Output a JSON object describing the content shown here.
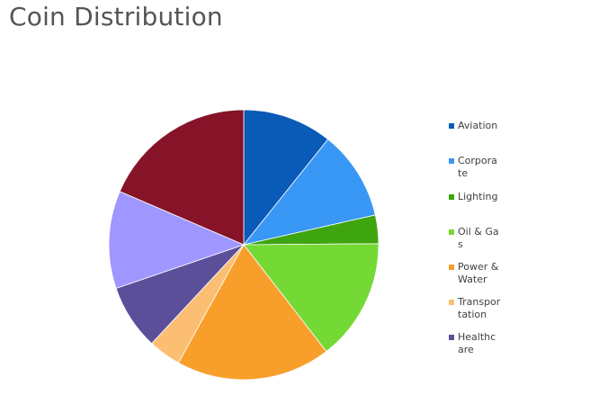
{
  "title": "Coin Distribution",
  "chart_data": {
    "type": "pie",
    "title": "Coin Distribution",
    "categories": [
      "Aviation",
      "Corporate",
      "Lighting",
      "Oil & Gas",
      "Power & Water",
      "Transportation",
      "Healthcare",
      "",
      ""
    ],
    "values": [
      11,
      11,
      3.5,
      15,
      19,
      4,
      8,
      12,
      19
    ],
    "colors": [
      "#0a5ab8",
      "#3997f5",
      "#3ea50f",
      "#75d935",
      "#f89f2b",
      "#fcbe72",
      "#5b4f9a",
      "#9f97ff",
      "#861327"
    ],
    "legend_position": "right"
  },
  "legend": [
    {
      "label": "Aviation",
      "color": "#0a5ab8"
    },
    {
      "label": "Corporate",
      "color": "#3997f5"
    },
    {
      "label": "Lighting",
      "color": "#3ea50f"
    },
    {
      "label": "Oil & Gas",
      "color": "#75d935"
    },
    {
      "label": "Power & Water",
      "color": "#f89f2b"
    },
    {
      "label": "Transportation",
      "color": "#fcbe72"
    },
    {
      "label": "Healthcare",
      "color": "#5b4f9a"
    }
  ]
}
